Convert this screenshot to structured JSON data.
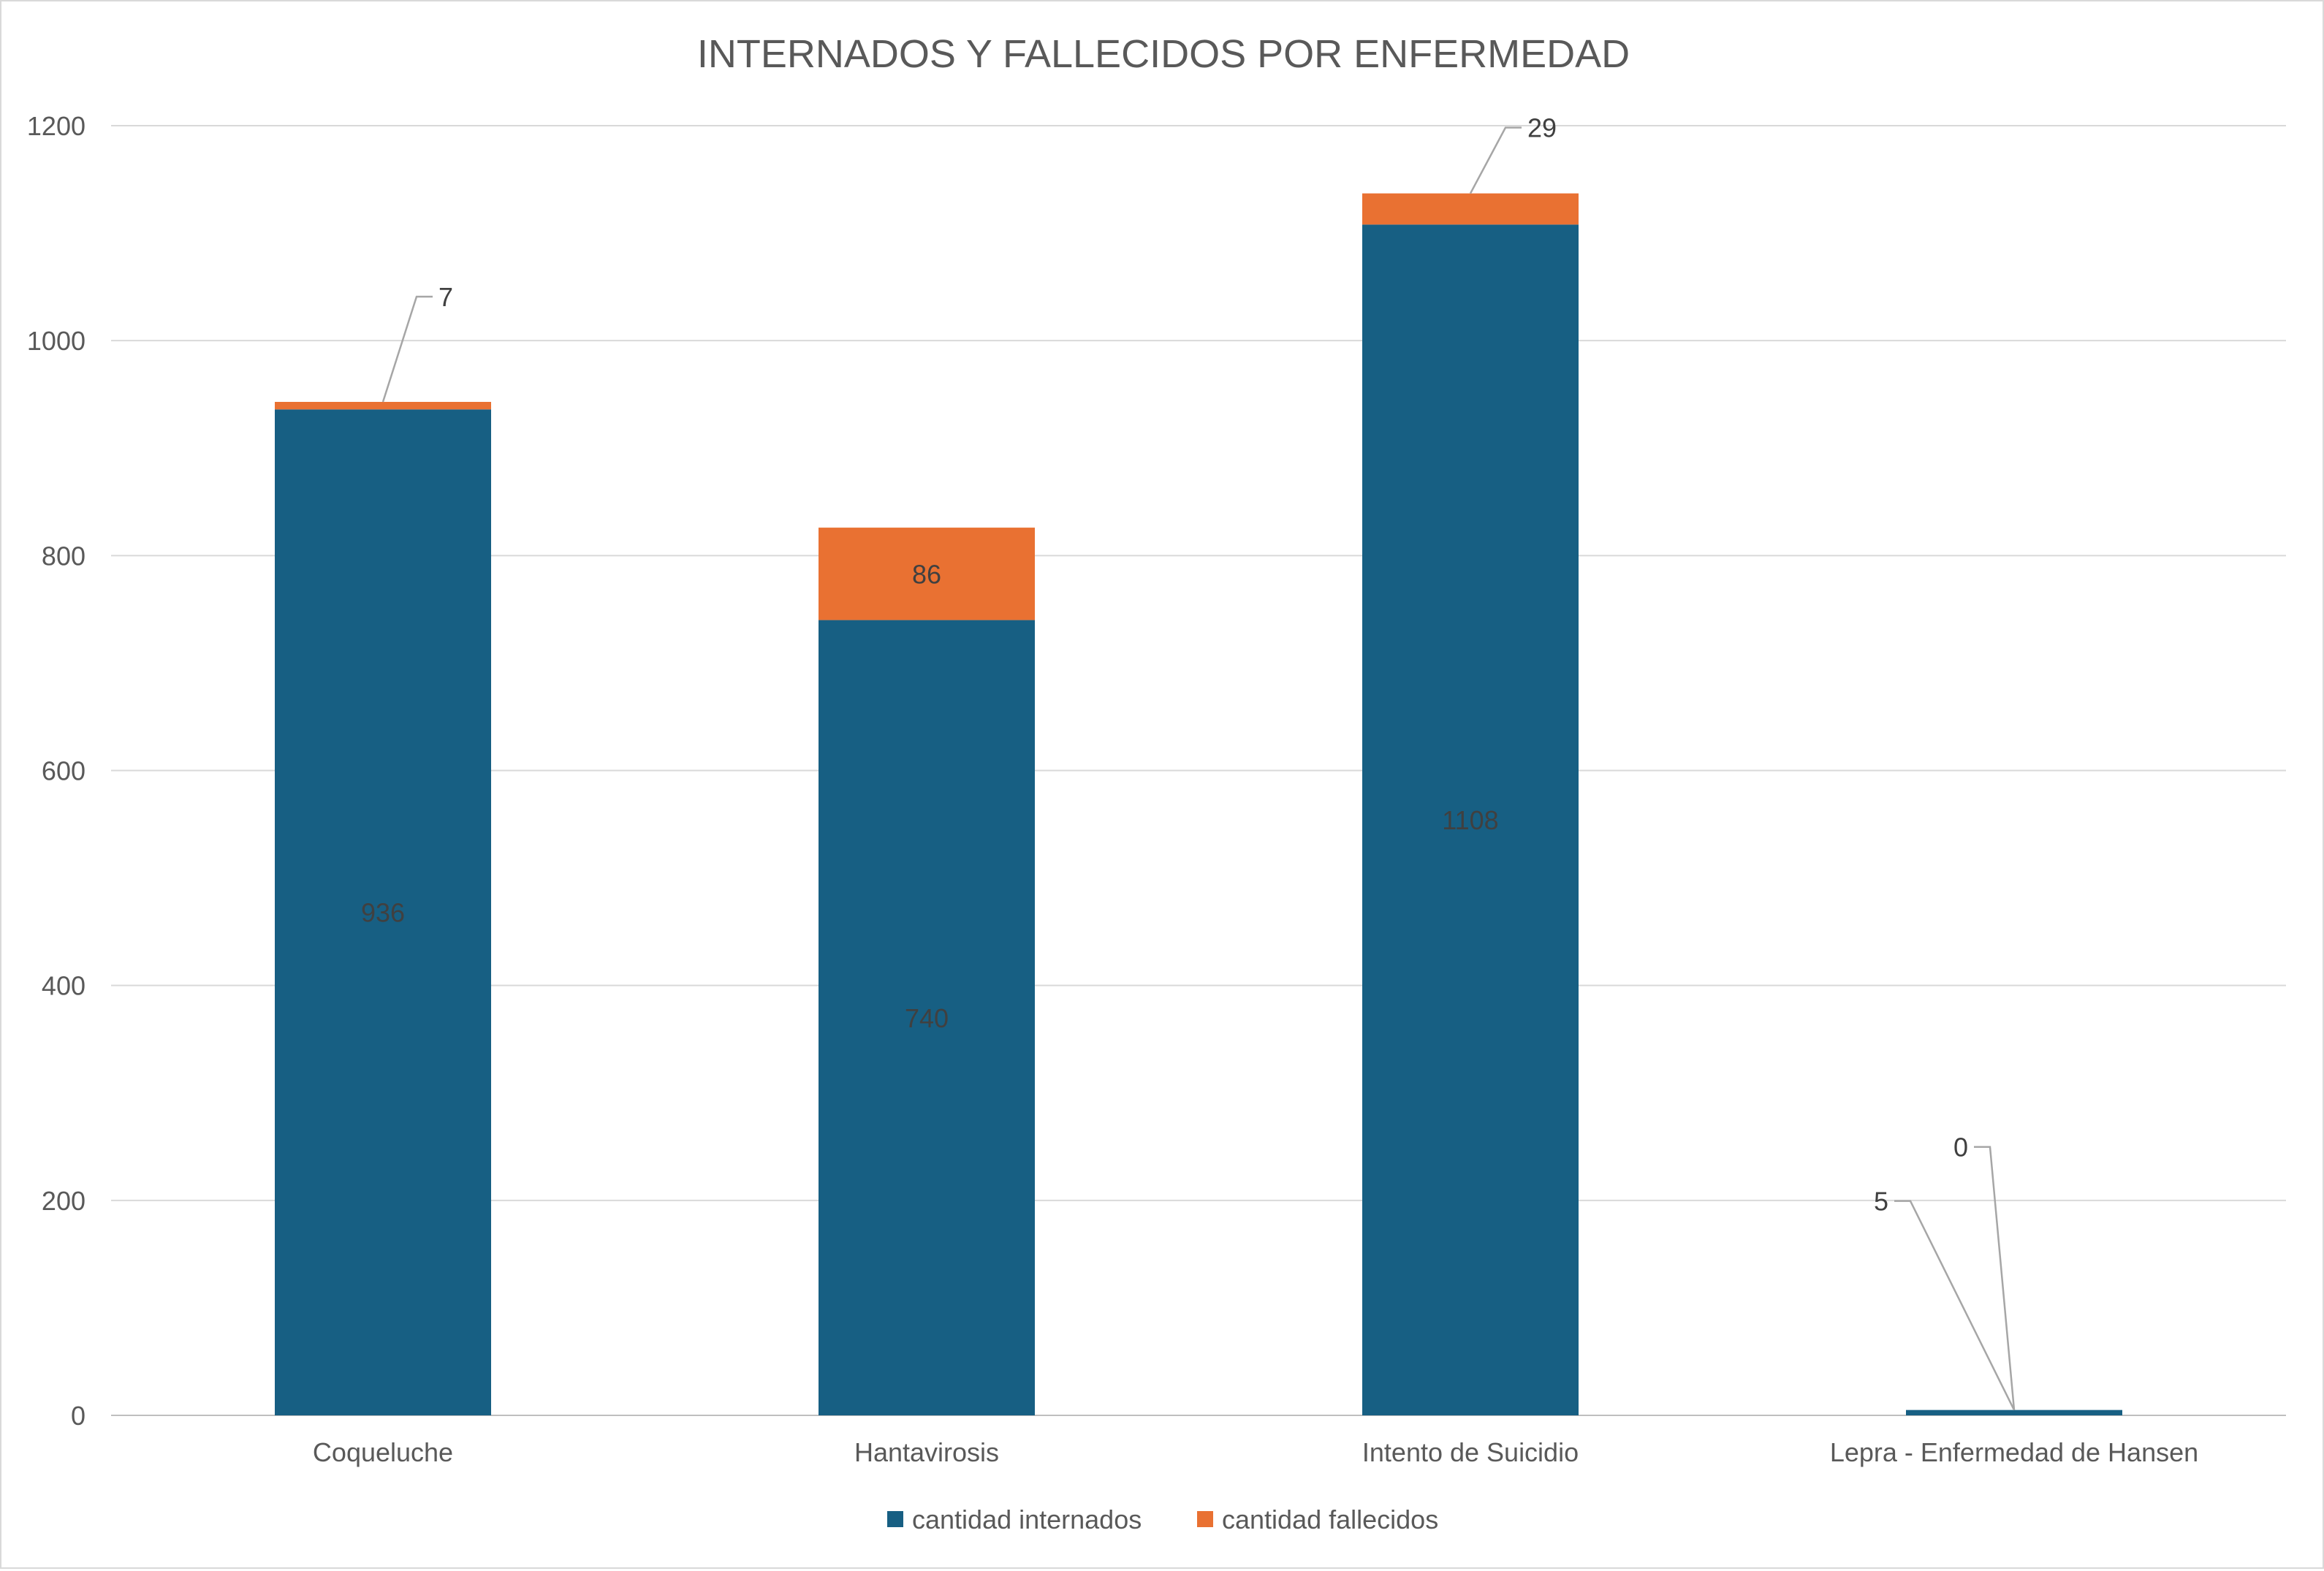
{
  "chart_data": {
    "type": "bar",
    "stacked": true,
    "title": "INTERNADOS Y FALLECIDOS POR ENFERMEDAD",
    "xlabel": "",
    "ylabel": "",
    "categories": [
      "Coqueluche",
      "Hantavirosis",
      "Intento de Suicidio",
      "Lepra - Enfermedad de Hansen"
    ],
    "series": [
      {
        "name": "cantidad internados",
        "values": [
          936,
          740,
          1108,
          5
        ],
        "color": "#175F83"
      },
      {
        "name": "cantidad fallecidos",
        "values": [
          7,
          86,
          29,
          0
        ],
        "color": "#E97132"
      }
    ],
    "ylim": [
      0,
      1200
    ],
    "yticks": [
      0,
      200,
      400,
      600,
      800,
      1000,
      1200
    ],
    "grid": true,
    "legend_position": "bottom"
  }
}
